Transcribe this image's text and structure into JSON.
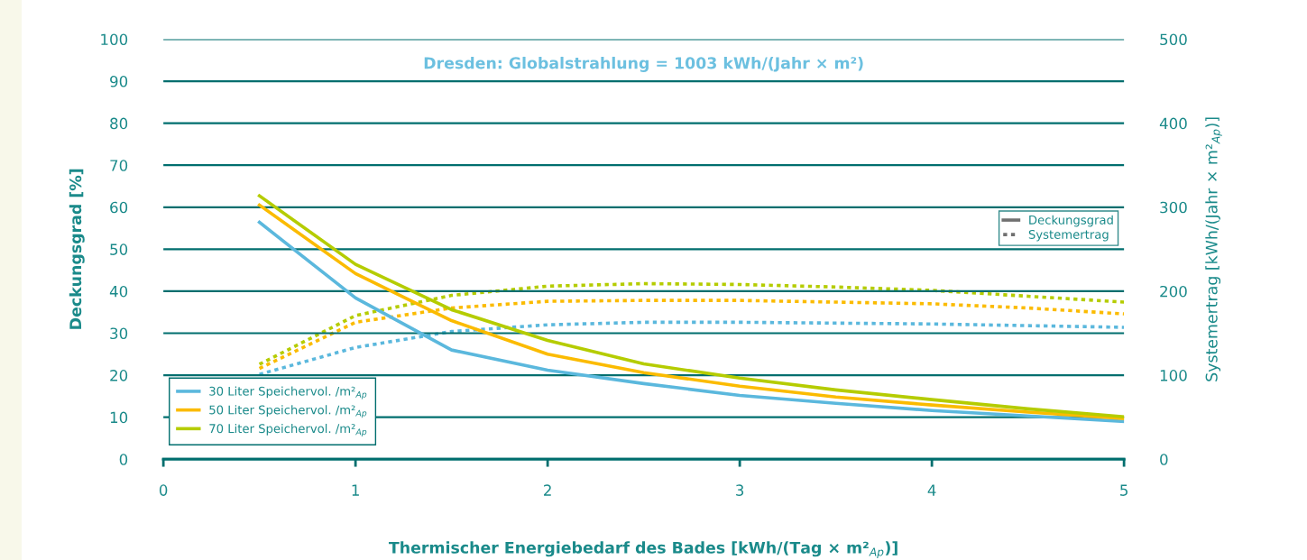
{
  "chart_data": {
    "type": "line",
    "title": "Dresden: Globalstrahlung = 1003 kWh/(Jahr × m²)",
    "xlabel": "Thermischer Energiebedarf des Bades [kWh/(Tag × m²$_{Ap}$)]",
    "ylabel": "Deckungsgrad [%]",
    "y2label": "Systemertrag [kWh/(Jahr × m²$_{Ap}$)]",
    "x": [
      0.5,
      1,
      1.5,
      2,
      2.5,
      3,
      3.5,
      4,
      4.5,
      5
    ],
    "series": [
      {
        "name": "30 Liter Speichervol. /m²$_{Ap}$",
        "color": "#5bb8dd",
        "line_style": "solid",
        "values": [
          56.4,
          38.4,
          26.0,
          21.2,
          18.0,
          15.2,
          13.3,
          11.6,
          10.3,
          9.0
        ]
      },
      {
        "name": "50 Liter Speichervol. /m²$_{Ap}$",
        "color": "#fbbb00",
        "line_style": "solid",
        "values": [
          60.5,
          44.2,
          33.0,
          25.0,
          20.6,
          17.4,
          14.8,
          12.9,
          11.2,
          9.7
        ]
      },
      {
        "name": "70 Liter Speichervol. /m²$_{Ap}$",
        "color": "#b5cc00",
        "line_style": "solid",
        "values": [
          62.7,
          46.4,
          35.6,
          28.3,
          22.7,
          19.3,
          16.5,
          14.2,
          12.0,
          10.1
        ]
      },
      {
        "color": "#5bb8dd",
        "line_style": "dotted",
        "axis": "y2",
        "values": [
          101,
          133,
          152,
          160,
          163,
          163,
          162,
          161,
          159,
          157
        ]
      },
      {
        "color": "#fbbb00",
        "line_style": "dotted",
        "axis": "y2",
        "values": [
          108,
          163,
          180,
          188,
          189,
          189,
          187,
          185,
          180,
          173
        ]
      },
      {
        "color": "#b5cc00",
        "line_style": "dotted",
        "axis": "y2",
        "values": [
          113,
          171,
          195,
          206,
          209,
          208,
          205,
          201,
          194,
          187
        ]
      }
    ],
    "annotations": [
      "Deckungsgrad",
      "Systemertrag"
    ],
    "xlim": [
      0,
      5
    ],
    "xticks": [
      0,
      1,
      2,
      3,
      4,
      5
    ],
    "ylim": [
      0,
      100
    ],
    "yticks": [
      0,
      10,
      20,
      30,
      40,
      50,
      60,
      70,
      80,
      90,
      100
    ],
    "y2lim": [
      0,
      500
    ],
    "y2ticks": [
      0,
      100,
      200,
      300,
      400,
      500
    ],
    "grid": "y",
    "legend": "bottom left"
  }
}
